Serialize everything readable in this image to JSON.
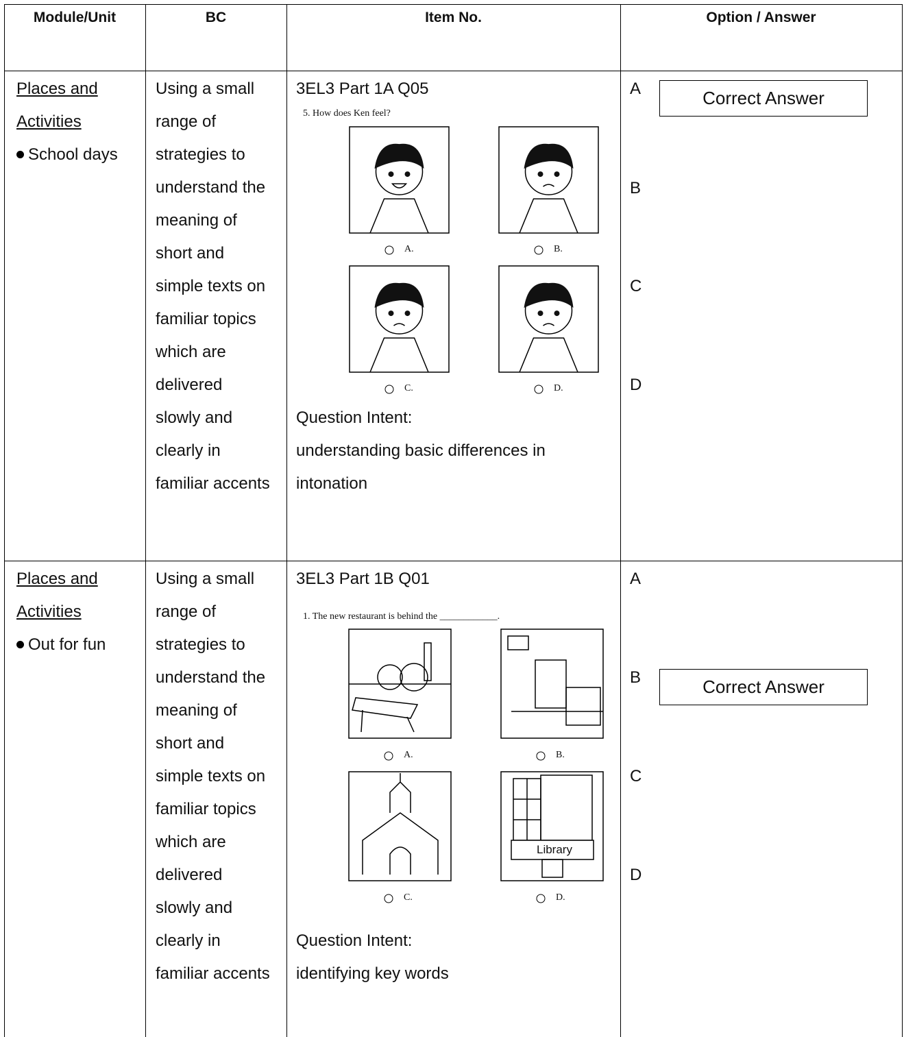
{
  "table": {
    "header": [
      "Module/Unit",
      "BC",
      "Item No.",
      "Option / Answer"
    ],
    "rows": [
      {
        "module": "Places and Activities",
        "topic": "School days",
        "bc_lines": [
          "Using a small",
          "range of",
          "strategies to",
          "understand the",
          "meaning of",
          "short and",
          "simple texts on",
          "familiar topics",
          "which are",
          "delivered",
          "slowly and",
          "clearly in",
          "familiar accents"
        ],
        "item": "3EL3 Part 1A Q05",
        "question": "5.   How does Ken feel?",
        "choices": [
          "A.",
          "B.",
          "C.",
          "D."
        ],
        "intent_label": "Question Intent:",
        "intent": "understanding basic differences in intonation",
        "options": [
          {
            "letter": "A",
            "tag": "Correct Answer"
          },
          {
            "letter": "B"
          },
          {
            "letter": "C"
          },
          {
            "letter": "D"
          }
        ]
      },
      {
        "module": "Places and Activities",
        "topic": "Out for fun",
        "bc_lines": [
          "Using a small",
          "range of",
          "strategies to",
          "understand the",
          "meaning of",
          "short and",
          "simple texts on",
          "familiar topics",
          "which are",
          "delivered",
          "slowly and",
          "clearly in",
          "familiar accents"
        ],
        "item": "3EL3 Part 1B Q01",
        "question": "1.   The new restaurant is behind the ____________.",
        "choices": [
          "A.",
          "B.",
          "C.",
          "D."
        ],
        "picture_text": "Library",
        "intent_label": "Question Intent:",
        "intent": "identifying key words",
        "options": [
          {
            "letter": "A"
          },
          {
            "letter": "B",
            "tag": "Correct Answer"
          },
          {
            "letter": "C"
          },
          {
            "letter": "D"
          }
        ]
      }
    ]
  }
}
